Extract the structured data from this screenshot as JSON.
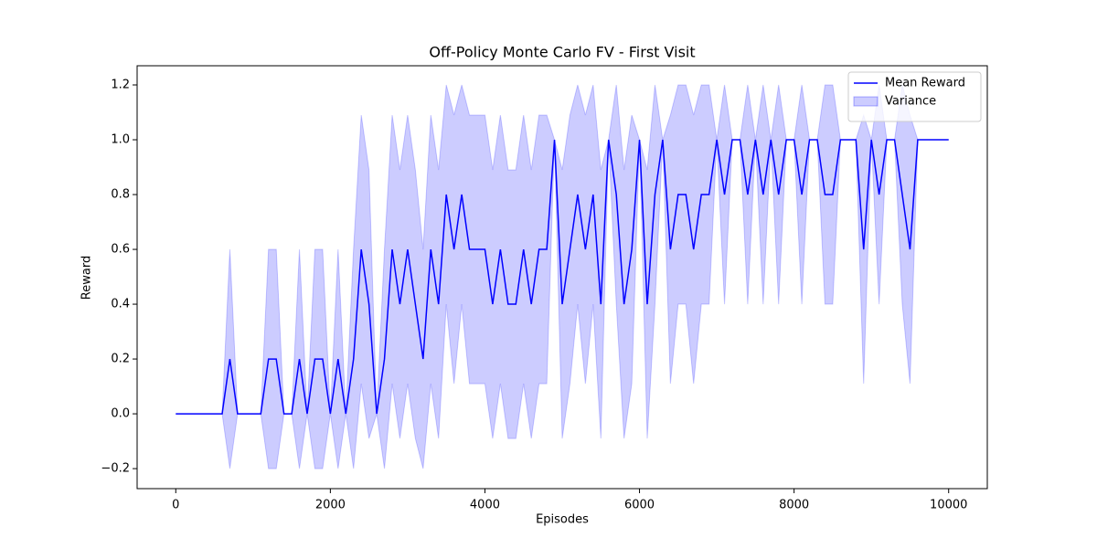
{
  "chart_data": {
    "type": "line",
    "title": "Off-Policy Monte Carlo FV - First Visit",
    "x_label": "Episodes",
    "y_label": "Reward",
    "x": [
      0,
      100,
      200,
      300,
      400,
      500,
      600,
      700,
      800,
      900,
      1000,
      1100,
      1200,
      1300,
      1400,
      1500,
      1600,
      1700,
      1800,
      1900,
      2000,
      2100,
      2200,
      2300,
      2400,
      2500,
      2600,
      2700,
      2800,
      2900,
      3000,
      3100,
      3200,
      3300,
      3400,
      3500,
      3600,
      3700,
      3800,
      3900,
      4000,
      4100,
      4200,
      4300,
      4400,
      4500,
      4600,
      4700,
      4800,
      4900,
      5000,
      5100,
      5200,
      5300,
      5400,
      5500,
      5600,
      5700,
      5800,
      5900,
      6000,
      6100,
      6200,
      6300,
      6400,
      6500,
      6600,
      6700,
      6800,
      6900,
      7000,
      7100,
      7200,
      7300,
      7400,
      7500,
      7600,
      7700,
      7800,
      7900,
      8000,
      8100,
      8200,
      8300,
      8400,
      8500,
      8600,
      8700,
      8800,
      8900,
      9000,
      9100,
      9200,
      9300,
      9400,
      9500,
      9600,
      9700,
      9800,
      9900,
      10000
    ],
    "series": [
      {
        "name": "Mean Reward",
        "color": "#0000ff",
        "values": [
          0,
          0,
          0,
          0,
          0,
          0,
          0,
          0.2,
          0,
          0,
          0,
          0,
          0.2,
          0.2,
          0,
          0,
          0.2,
          0,
          0.2,
          0.2,
          0,
          0.2,
          0,
          0.2,
          0.6,
          0.4,
          0,
          0.2,
          0.6,
          0.4,
          0.6,
          0.4,
          0.2,
          0.6,
          0.4,
          0.8,
          0.6,
          0.8,
          0.6,
          0.6,
          0.6,
          0.4,
          0.6,
          0.4,
          0.4,
          0.6,
          0.4,
          0.6,
          0.6,
          1,
          0.4,
          0.6,
          0.8,
          0.6,
          0.8,
          0.4,
          1,
          0.8,
          0.4,
          0.6,
          1,
          0.4,
          0.8,
          1,
          0.6,
          0.8,
          0.8,
          0.6,
          0.8,
          0.8,
          1,
          0.8,
          1,
          1,
          0.8,
          1,
          0.8,
          1,
          0.8,
          1,
          1,
          0.8,
          1,
          1,
          0.8,
          0.8,
          1,
          1,
          1,
          0.6,
          1,
          0.8,
          1,
          1,
          0.8,
          0.6,
          1,
          1,
          1,
          1,
          1
        ]
      },
      {
        "name": "Variance",
        "color": "#0000ff",
        "lower": [
          0,
          0,
          0,
          0,
          0,
          0,
          0,
          -0.2,
          0,
          0,
          0,
          0,
          -0.2,
          -0.2,
          0,
          0,
          -0.2,
          0,
          -0.2,
          -0.2,
          0,
          -0.2,
          0,
          -0.2,
          0.11,
          -0.09,
          0,
          -0.2,
          0.11,
          -0.09,
          0.11,
          -0.09,
          -0.2,
          0.11,
          -0.09,
          0.4,
          0.11,
          0.4,
          0.11,
          0.11,
          0.11,
          -0.09,
          0.11,
          -0.09,
          -0.09,
          0.11,
          -0.09,
          0.11,
          0.11,
          1,
          -0.09,
          0.11,
          0.4,
          0.11,
          0.4,
          -0.09,
          1,
          0.4,
          -0.09,
          0.11,
          1,
          -0.09,
          0.4,
          1,
          0.11,
          0.4,
          0.4,
          0.11,
          0.4,
          0.4,
          1,
          0.4,
          1,
          1,
          0.4,
          1,
          0.4,
          1,
          0.4,
          1,
          1,
          0.4,
          1,
          1,
          0.4,
          0.4,
          1,
          1,
          1,
          0.11,
          1,
          0.4,
          1,
          1,
          0.4,
          0.11,
          1,
          1,
          1,
          1,
          1
        ],
        "upper": [
          0,
          0,
          0,
          0,
          0,
          0,
          0,
          0.6,
          0,
          0,
          0,
          0,
          0.6,
          0.6,
          0,
          0,
          0.6,
          0,
          0.6,
          0.6,
          0,
          0.6,
          0,
          0.6,
          1.09,
          0.89,
          0,
          0.6,
          1.09,
          0.89,
          1.09,
          0.89,
          0.6,
          1.09,
          0.89,
          1.2,
          1.09,
          1.2,
          1.09,
          1.09,
          1.09,
          0.89,
          1.09,
          0.89,
          0.89,
          1.09,
          0.89,
          1.09,
          1.09,
          1,
          0.89,
          1.09,
          1.2,
          1.09,
          1.2,
          0.89,
          1,
          1.2,
          0.89,
          1.09,
          1,
          0.89,
          1.2,
          1,
          1.09,
          1.2,
          1.2,
          1.09,
          1.2,
          1.2,
          1,
          1.2,
          1,
          1,
          1.2,
          1,
          1.2,
          1,
          1.2,
          1,
          1,
          1.2,
          1,
          1,
          1.2,
          1.2,
          1,
          1,
          1,
          1.09,
          1,
          1.2,
          1,
          1,
          1.2,
          1.09,
          1,
          1,
          1,
          1,
          1
        ]
      }
    ],
    "xlim": [
      -500,
      10500
    ],
    "ylim": [
      -0.273,
      1.27
    ],
    "xticks": [
      0,
      2000,
      4000,
      6000,
      8000,
      10000
    ],
    "yticks": [
      {
        "value": -0.2,
        "label": "−0.2"
      },
      {
        "value": 0,
        "label": "0.0"
      },
      {
        "value": 0.2,
        "label": "0.2"
      },
      {
        "value": 0.4,
        "label": "0.4"
      },
      {
        "value": 0.6,
        "label": "0.6"
      },
      {
        "value": 0.8,
        "label": "0.8"
      },
      {
        "value": 1,
        "label": "1.0"
      },
      {
        "value": 1.2,
        "label": "1.2"
      }
    ],
    "legend": "upper right"
  }
}
